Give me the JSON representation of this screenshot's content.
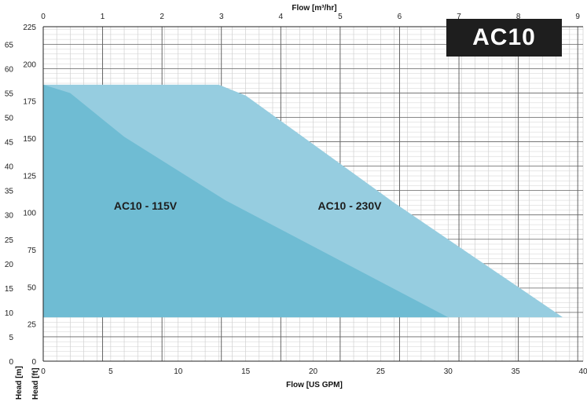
{
  "badge": {
    "text": "AC10"
  },
  "chart_data": {
    "type": "area",
    "x_bottom": {
      "label": "Flow [US GPM]",
      "lim": [
        0,
        40
      ],
      "ticks": [
        0,
        5,
        10,
        15,
        20,
        25,
        30,
        35,
        40
      ]
    },
    "x_top": {
      "label": "Flow [m³/hr]",
      "lim": [
        0,
        9.09
      ],
      "ticks": [
        0,
        1,
        2,
        3,
        4,
        5,
        6,
        7,
        8,
        9
      ]
    },
    "y_left_m": {
      "label": "Head [m]",
      "lim": [
        0,
        68.6
      ],
      "ticks": [
        0,
        5,
        10,
        15,
        20,
        25,
        30,
        35,
        40,
        45,
        50,
        55,
        60,
        65
      ]
    },
    "y_left_ft": {
      "label": "Head [ft]",
      "lim": [
        0,
        225
      ],
      "ticks": [
        0,
        25,
        50,
        75,
        100,
        125,
        150,
        175,
        200,
        225
      ]
    },
    "grid": true,
    "series": [
      {
        "name": "AC10 - 230V",
        "color": "#96cde0",
        "x": [
          0,
          13,
          15,
          26,
          38.5,
          38.5,
          0
        ],
        "y": [
          56.7,
          56.7,
          54.5,
          32.5,
          9,
          9,
          9
        ]
      },
      {
        "name": "AC10 - 115V",
        "color": "#6fbcd3",
        "x": [
          0,
          2,
          6,
          13.5,
          30,
          30,
          0
        ],
        "y": [
          56.7,
          55,
          46,
          33,
          9,
          9,
          9
        ]
      }
    ]
  }
}
